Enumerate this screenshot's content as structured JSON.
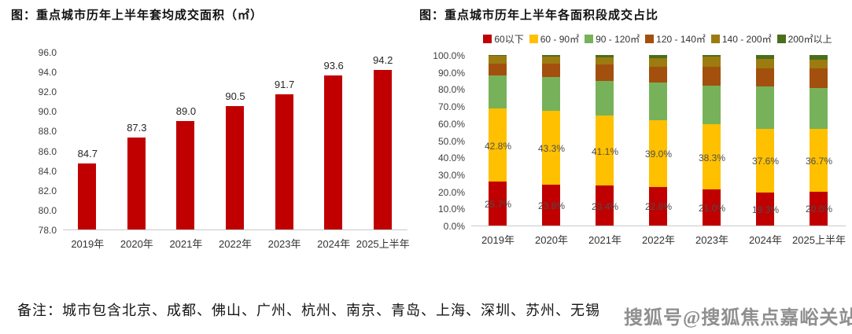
{
  "note": {
    "text": "备注：城市包含北京、成都、佛山、广州、杭州、南京、青岛、上海、深圳、苏州、无锡"
  },
  "watermark": {
    "text": "搜狐号@搜狐焦点嘉峪关站"
  },
  "colors": {
    "primary_red": "#C00000",
    "gold": "#FFC000",
    "green": "#77B25A",
    "dark_orange": "#A3500E",
    "dark_yellow": "#9C7B10",
    "dark_green": "#4A6E1C"
  },
  "chart_data": [
    {
      "type": "bar",
      "title": "图：重点城市历年上半年套均成交面积（㎡）",
      "categories": [
        "2019年",
        "2020年",
        "2021年",
        "2022年",
        "2023年",
        "2024年",
        "2025上半年"
      ],
      "values": [
        84.7,
        87.3,
        89.0,
        90.5,
        91.7,
        93.6,
        94.2
      ],
      "value_labels": [
        "84.7",
        "87.3",
        "89.0",
        "90.5",
        "91.7",
        "93.6",
        "94.2"
      ],
      "xlabel": "",
      "ylabel": "",
      "ylim": [
        78.0,
        96.0
      ],
      "ytick_labels": [
        "78.0",
        "80.0",
        "82.0",
        "84.0",
        "86.0",
        "88.0",
        "90.0",
        "92.0",
        "94.0",
        "96.0"
      ],
      "grid": false,
      "legend_position": "none",
      "bar_color": "#C00000"
    },
    {
      "type": "stacked-bar",
      "title": "图：重点城市历年上半年各面积段成交占比",
      "categories": [
        "2019年",
        "2020年",
        "2021年",
        "2022年",
        "2023年",
        "2024年",
        "2025上半年"
      ],
      "xlabel": "",
      "ylabel": "",
      "ylim": [
        0,
        100
      ],
      "ytick_labels": [
        "0.0%",
        "10.0%",
        "20.0%",
        "30.0%",
        "40.0%",
        "50.0%",
        "60.0%",
        "70.0%",
        "80.0%",
        "90.0%",
        "100.0%"
      ],
      "grid": false,
      "legend_position": "top",
      "series": [
        {
          "name": "60以下",
          "color": "#C00000",
          "values": [
            25.7,
            23.8,
            23.4,
            22.8,
            21.0,
            19.3,
            20.0
          ],
          "labels": [
            "25.7%",
            "23.8%",
            "23.4%",
            "22.8%",
            "21.0%",
            "19.3%",
            "20.0%"
          ]
        },
        {
          "name": "60 - 90㎡",
          "color": "#FFC000",
          "values": [
            42.8,
            43.3,
            41.1,
            39.0,
            38.3,
            37.6,
            36.7
          ],
          "labels": [
            "42.8%",
            "43.3%",
            "41.1%",
            "39.0%",
            "38.3%",
            "37.6%",
            "36.7%"
          ]
        },
        {
          "name": "90 - 120㎡",
          "color": "#77B25A",
          "values": [
            19.5,
            19.8,
            20.3,
            22.2,
            22.9,
            24.6,
            23.8
          ]
        },
        {
          "name": "120 - 140㎡",
          "color": "#A3500E",
          "values": [
            7.0,
            8.0,
            9.5,
            9.2,
            11.0,
            10.7,
            11.5
          ]
        },
        {
          "name": "140 - 200㎡",
          "color": "#9C7B10",
          "values": [
            4.5,
            4.4,
            4.3,
            5.1,
            5.9,
            5.6,
            5.2
          ]
        },
        {
          "name": "200㎡以上",
          "color": "#4A6E1C",
          "values": [
            0.5,
            0.7,
            1.4,
            1.7,
            0.9,
            2.2,
            2.8
          ]
        }
      ]
    }
  ]
}
